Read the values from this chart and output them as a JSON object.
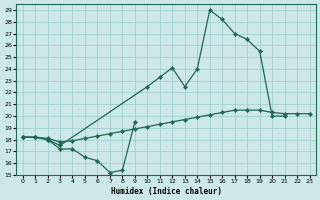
{
  "bg_color": "#cce8e8",
  "grid_color": "#99cccc",
  "line_color": "#226655",
  "xlabel": "Humidex (Indice chaleur)",
  "xlim": [
    -0.5,
    23.5
  ],
  "ylim": [
    15,
    29.5
  ],
  "xticks": [
    0,
    1,
    2,
    3,
    4,
    5,
    6,
    7,
    8,
    9,
    10,
    11,
    12,
    13,
    14,
    15,
    16,
    17,
    18,
    19,
    20,
    21,
    22,
    23
  ],
  "yticks": [
    15,
    16,
    17,
    18,
    19,
    20,
    21,
    22,
    23,
    24,
    25,
    26,
    27,
    28,
    29
  ],
  "series": [
    {
      "x": [
        0,
        1,
        2,
        3,
        10,
        11,
        12,
        13,
        14,
        15,
        16,
        17,
        18,
        19,
        20,
        21
      ],
      "y": [
        18.2,
        18.2,
        18.0,
        17.5,
        22.5,
        23.3,
        24.1,
        22.5,
        24.0,
        29.0,
        28.2,
        27.0,
        26.5,
        25.5,
        20.0,
        20.0
      ]
    },
    {
      "x": [
        0,
        1,
        2,
        3,
        4,
        5,
        6,
        7,
        8,
        9,
        10,
        11,
        12,
        13,
        14,
        15,
        16,
        17,
        18,
        19,
        20,
        21,
        22,
        23
      ],
      "y": [
        18.2,
        18.2,
        18.1,
        17.8,
        17.9,
        18.1,
        18.3,
        18.5,
        18.7,
        18.9,
        19.1,
        19.3,
        19.5,
        19.7,
        19.9,
        20.1,
        20.3,
        20.5,
        20.5,
        20.5,
        20.3,
        20.2,
        20.2,
        20.2
      ]
    },
    {
      "x": [
        0,
        1,
        2,
        3,
        4,
        5,
        6,
        7,
        8,
        9
      ],
      "y": [
        18.2,
        18.2,
        18.0,
        17.2,
        17.2,
        16.5,
        16.2,
        15.2,
        15.4,
        19.5
      ]
    }
  ]
}
